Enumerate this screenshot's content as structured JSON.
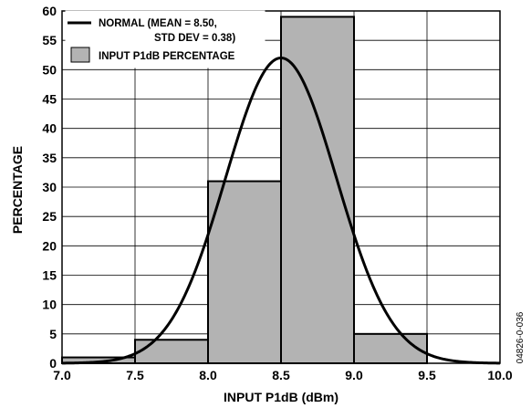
{
  "chart_data": {
    "type": "bar",
    "xlabel": "INPUT P1dB (dBm)",
    "ylabel": "PERCENTAGE",
    "xlim": [
      7.0,
      10.0
    ],
    "ylim": [
      0,
      60
    ],
    "xticks": [
      7.0,
      7.5,
      8.0,
      8.5,
      9.0,
      9.5,
      10.0
    ],
    "xtick_labels": [
      "7.0",
      "7.5",
      "8.0",
      "8.5",
      "9.0",
      "9.5",
      "10.0"
    ],
    "yticks": [
      0,
      5,
      10,
      15,
      20,
      25,
      30,
      35,
      40,
      45,
      50,
      55,
      60
    ],
    "grid": true,
    "legend_position": "top-left",
    "bar_color": "#b3b3b3",
    "bins": [
      {
        "x0": 7.0,
        "x1": 7.5,
        "value": 1
      },
      {
        "x0": 7.5,
        "x1": 8.0,
        "value": 4
      },
      {
        "x0": 8.0,
        "x1": 8.5,
        "value": 31
      },
      {
        "x0": 8.5,
        "x1": 9.0,
        "value": 59
      },
      {
        "x0": 9.0,
        "x1": 9.5,
        "value": 5
      }
    ],
    "normal_curve": {
      "mean": 8.5,
      "std": 0.38,
      "peak": 52
    },
    "legend": [
      {
        "kind": "line",
        "line1": "NORMAL (MEAN = 8.50,",
        "line2": "STD DEV = 0.38)"
      },
      {
        "kind": "bar",
        "line1": "INPUT P1dB PERCENTAGE"
      }
    ],
    "figure_id": "04826-0-036"
  }
}
